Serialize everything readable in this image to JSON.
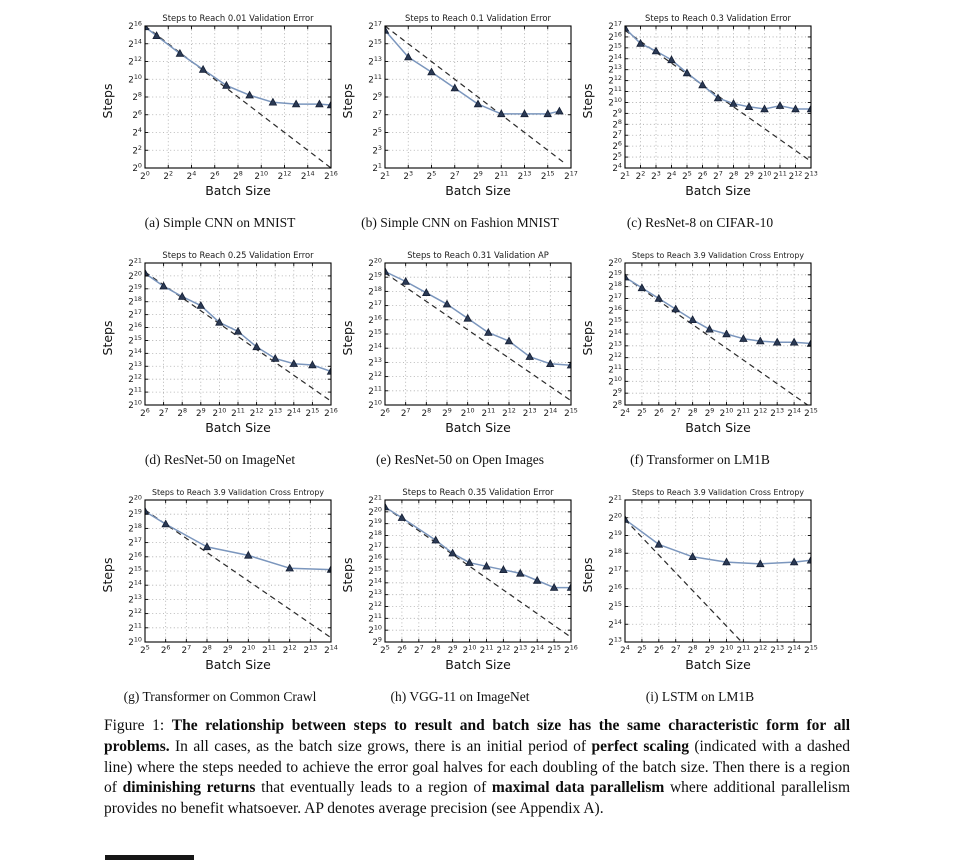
{
  "colors": {
    "curve": "#7b96bd",
    "marker": "#2b3a55",
    "marker_edge": "#141e33",
    "dashed": "#2b2b2b",
    "grid": "#a6a6a6",
    "axis": "#000000",
    "text": "#1a1a1a"
  },
  "chart_data": [
    {
      "id": "a",
      "type": "line",
      "title": "Steps to Reach 0.01 Validation Error",
      "caption": "(a) Simple CNN on MNIST",
      "xlabel": "Batch Size",
      "ylabel": "Steps",
      "log_base": 2,
      "grid": true,
      "legend": false,
      "x_range_exp": [
        0,
        16
      ],
      "x_tick_step": 2,
      "y_range_exp": [
        0,
        16
      ],
      "y_tick_step": 2,
      "points_exp": [
        [
          0,
          15.9
        ],
        [
          1,
          14.9
        ],
        [
          3,
          12.9
        ],
        [
          5,
          11.1
        ],
        [
          7,
          9.3
        ],
        [
          9,
          8.2
        ],
        [
          11,
          7.4
        ],
        [
          13,
          7.2
        ],
        [
          15,
          7.2
        ],
        [
          16,
          7.1
        ]
      ],
      "perfect_scaling_dash_exp": [
        [
          0,
          16
        ],
        [
          16,
          0
        ]
      ]
    },
    {
      "id": "b",
      "type": "line",
      "title": "Steps to Reach 0.1 Validation Error",
      "caption": "(b) Simple CNN on Fashion MNIST",
      "xlabel": "Batch Size",
      "ylabel": "Steps",
      "log_base": 2,
      "grid": true,
      "legend": false,
      "x_range_exp": [
        1,
        17
      ],
      "x_tick_step": 2,
      "y_range_exp": [
        1,
        17
      ],
      "y_tick_step": 2,
      "points_exp": [
        [
          1,
          16.5
        ],
        [
          3,
          13.5
        ],
        [
          5,
          11.8
        ],
        [
          7,
          10.0
        ],
        [
          9,
          8.2
        ],
        [
          11,
          7.1
        ],
        [
          13,
          7.1
        ],
        [
          15,
          7.1
        ],
        [
          16,
          7.4
        ]
      ],
      "perfect_scaling_dash_exp": [
        [
          1,
          17
        ],
        [
          16.4,
          1.6
        ]
      ]
    },
    {
      "id": "c",
      "type": "line",
      "title": "Steps to Reach 0.3 Validation Error",
      "caption": "(c) ResNet-8 on CIFAR-10",
      "xlabel": "Batch Size",
      "ylabel": "Steps",
      "log_base": 2,
      "grid": true,
      "legend": false,
      "x_range_exp": [
        1,
        13
      ],
      "x_tick_step": 1,
      "y_range_exp": [
        4,
        17
      ],
      "y_tick_step": 1,
      "points_exp": [
        [
          1,
          16.8
        ],
        [
          2,
          15.4
        ],
        [
          3,
          14.7
        ],
        [
          4,
          13.9
        ],
        [
          5,
          12.7
        ],
        [
          6,
          11.6
        ],
        [
          7,
          10.4
        ],
        [
          8,
          9.9
        ],
        [
          9,
          9.6
        ],
        [
          10,
          9.4
        ],
        [
          11,
          9.7
        ],
        [
          12,
          9.4
        ],
        [
          13,
          9.4
        ]
      ],
      "perfect_scaling_dash_exp": [
        [
          1,
          16.6
        ],
        [
          13,
          4.6
        ]
      ]
    },
    {
      "id": "d",
      "type": "line",
      "title": "Steps to Reach 0.25 Validation Error",
      "caption": "(d) ResNet-50 on ImageNet",
      "xlabel": "Batch Size",
      "ylabel": "Steps",
      "log_base": 2,
      "grid": true,
      "legend": false,
      "x_range_exp": [
        6,
        16
      ],
      "x_tick_step": 1,
      "y_range_exp": [
        10,
        21
      ],
      "y_tick_step": 1,
      "points_exp": [
        [
          6,
          20.2
        ],
        [
          7,
          19.2
        ],
        [
          8,
          18.4
        ],
        [
          9,
          17.7
        ],
        [
          10,
          16.4
        ],
        [
          11,
          15.7
        ],
        [
          12,
          14.5
        ],
        [
          13,
          13.6
        ],
        [
          14,
          13.2
        ],
        [
          15,
          13.1
        ],
        [
          16,
          12.6
        ]
      ],
      "perfect_scaling_dash_exp": [
        [
          6,
          20.3
        ],
        [
          16,
          10.3
        ]
      ]
    },
    {
      "id": "e",
      "type": "line",
      "title": "Steps to Reach 0.31 Validation AP",
      "caption": "(e) ResNet-50 on Open Images",
      "xlabel": "Batch Size",
      "ylabel": "Steps",
      "log_base": 2,
      "grid": true,
      "legend": false,
      "x_range_exp": [
        6,
        15
      ],
      "x_tick_step": 1,
      "y_range_exp": [
        10,
        20
      ],
      "y_tick_step": 1,
      "points_exp": [
        [
          6,
          19.4
        ],
        [
          7,
          18.7
        ],
        [
          8,
          17.9
        ],
        [
          9,
          17.1
        ],
        [
          10,
          16.1
        ],
        [
          11,
          15.1
        ],
        [
          12,
          14.5
        ],
        [
          13,
          13.4
        ],
        [
          14,
          12.9
        ],
        [
          15,
          12.8
        ]
      ],
      "perfect_scaling_dash_exp": [
        [
          6,
          19.3
        ],
        [
          15,
          10.3
        ]
      ]
    },
    {
      "id": "f",
      "type": "line",
      "title": "Steps to Reach 3.9 Validation Cross Entropy",
      "caption": "(f) Transformer on LM1B",
      "xlabel": "Batch Size",
      "ylabel": "Steps",
      "log_base": 2,
      "grid": true,
      "legend": false,
      "x_range_exp": [
        4,
        15
      ],
      "x_tick_step": 1,
      "y_range_exp": [
        8,
        20
      ],
      "y_tick_step": 1,
      "points_exp": [
        [
          4,
          18.8
        ],
        [
          5,
          17.9
        ],
        [
          6,
          17.0
        ],
        [
          7,
          16.1
        ],
        [
          8,
          15.2
        ],
        [
          9,
          14.4
        ],
        [
          10,
          14.0
        ],
        [
          11,
          13.6
        ],
        [
          12,
          13.4
        ],
        [
          13,
          13.3
        ],
        [
          14,
          13.3
        ],
        [
          15,
          13.2
        ]
      ],
      "perfect_scaling_dash_exp": [
        [
          4,
          18.8
        ],
        [
          14.8,
          8.0
        ]
      ]
    },
    {
      "id": "g",
      "type": "line",
      "title": "Steps to Reach 3.9 Validation Cross Entropy",
      "caption": "(g) Transformer on Common Crawl",
      "xlabel": "Batch Size",
      "ylabel": "Steps",
      "log_base": 2,
      "grid": true,
      "legend": false,
      "x_range_exp": [
        5,
        14
      ],
      "x_tick_step": 1,
      "y_range_exp": [
        10,
        20
      ],
      "y_tick_step": 1,
      "points_exp": [
        [
          5,
          19.2
        ],
        [
          6,
          18.3
        ],
        [
          8,
          16.7
        ],
        [
          10,
          16.1
        ],
        [
          12,
          15.2
        ],
        [
          14,
          15.1
        ]
      ],
      "perfect_scaling_dash_exp": [
        [
          5,
          19.3
        ],
        [
          14,
          10.3
        ]
      ]
    },
    {
      "id": "h",
      "type": "line",
      "title": "Steps to Reach 0.35 Validation Error",
      "caption": "(h) VGG-11 on ImageNet",
      "xlabel": "Batch Size",
      "ylabel": "Steps",
      "log_base": 2,
      "grid": true,
      "legend": false,
      "x_range_exp": [
        5,
        16
      ],
      "x_tick_step": 1,
      "y_range_exp": [
        9,
        21
      ],
      "y_tick_step": 1,
      "points_exp": [
        [
          5,
          20.4
        ],
        [
          6,
          19.5
        ],
        [
          8,
          17.6
        ],
        [
          9,
          16.5
        ],
        [
          10,
          15.7
        ],
        [
          11,
          15.4
        ],
        [
          12,
          15.1
        ],
        [
          13,
          14.8
        ],
        [
          14,
          14.2
        ],
        [
          15,
          13.6
        ],
        [
          16,
          13.6
        ]
      ],
      "perfect_scaling_dash_exp": [
        [
          5,
          20.4
        ],
        [
          16,
          9.4
        ]
      ]
    },
    {
      "id": "i",
      "type": "line",
      "title": "Steps to Reach 3.9 Validation Cross Entropy",
      "caption": "(i) LSTM on LM1B",
      "xlabel": "Batch Size",
      "ylabel": "Steps",
      "log_base": 2,
      "grid": true,
      "legend": false,
      "x_range_exp": [
        4,
        15
      ],
      "x_tick_step": 1,
      "y_range_exp": [
        13,
        21
      ],
      "y_tick_step": 1,
      "points_exp": [
        [
          4,
          19.9
        ],
        [
          6,
          18.5
        ],
        [
          8,
          17.8
        ],
        [
          10,
          17.5
        ],
        [
          12,
          17.4
        ],
        [
          14,
          17.5
        ],
        [
          15,
          17.6
        ]
      ],
      "perfect_scaling_dash_exp": [
        [
          4,
          19.9
        ],
        [
          10.9,
          13.0
        ]
      ]
    }
  ],
  "figure_caption": {
    "label": "Figure 1: ",
    "segments": [
      {
        "text": "The relationship between steps to result and batch size has the same characteristic form for all problems.",
        "bold": true
      },
      {
        "text": " In all cases, as the batch size grows, there is an initial period of ",
        "bold": false
      },
      {
        "text": "perfect scaling",
        "bold": true
      },
      {
        "text": " (indicated with a dashed line) where the steps needed to achieve the error goal halves for each doubling of the batch size. Then there is a region of ",
        "bold": false
      },
      {
        "text": "diminishing returns",
        "bold": true
      },
      {
        "text": " that eventually leads to a region of ",
        "bold": false
      },
      {
        "text": "maximal data parallelism",
        "bold": true
      },
      {
        "text": " where additional parallelism provides no benefit whatsoever. AP denotes average precision (see Appendix A).",
        "bold": false
      }
    ]
  }
}
